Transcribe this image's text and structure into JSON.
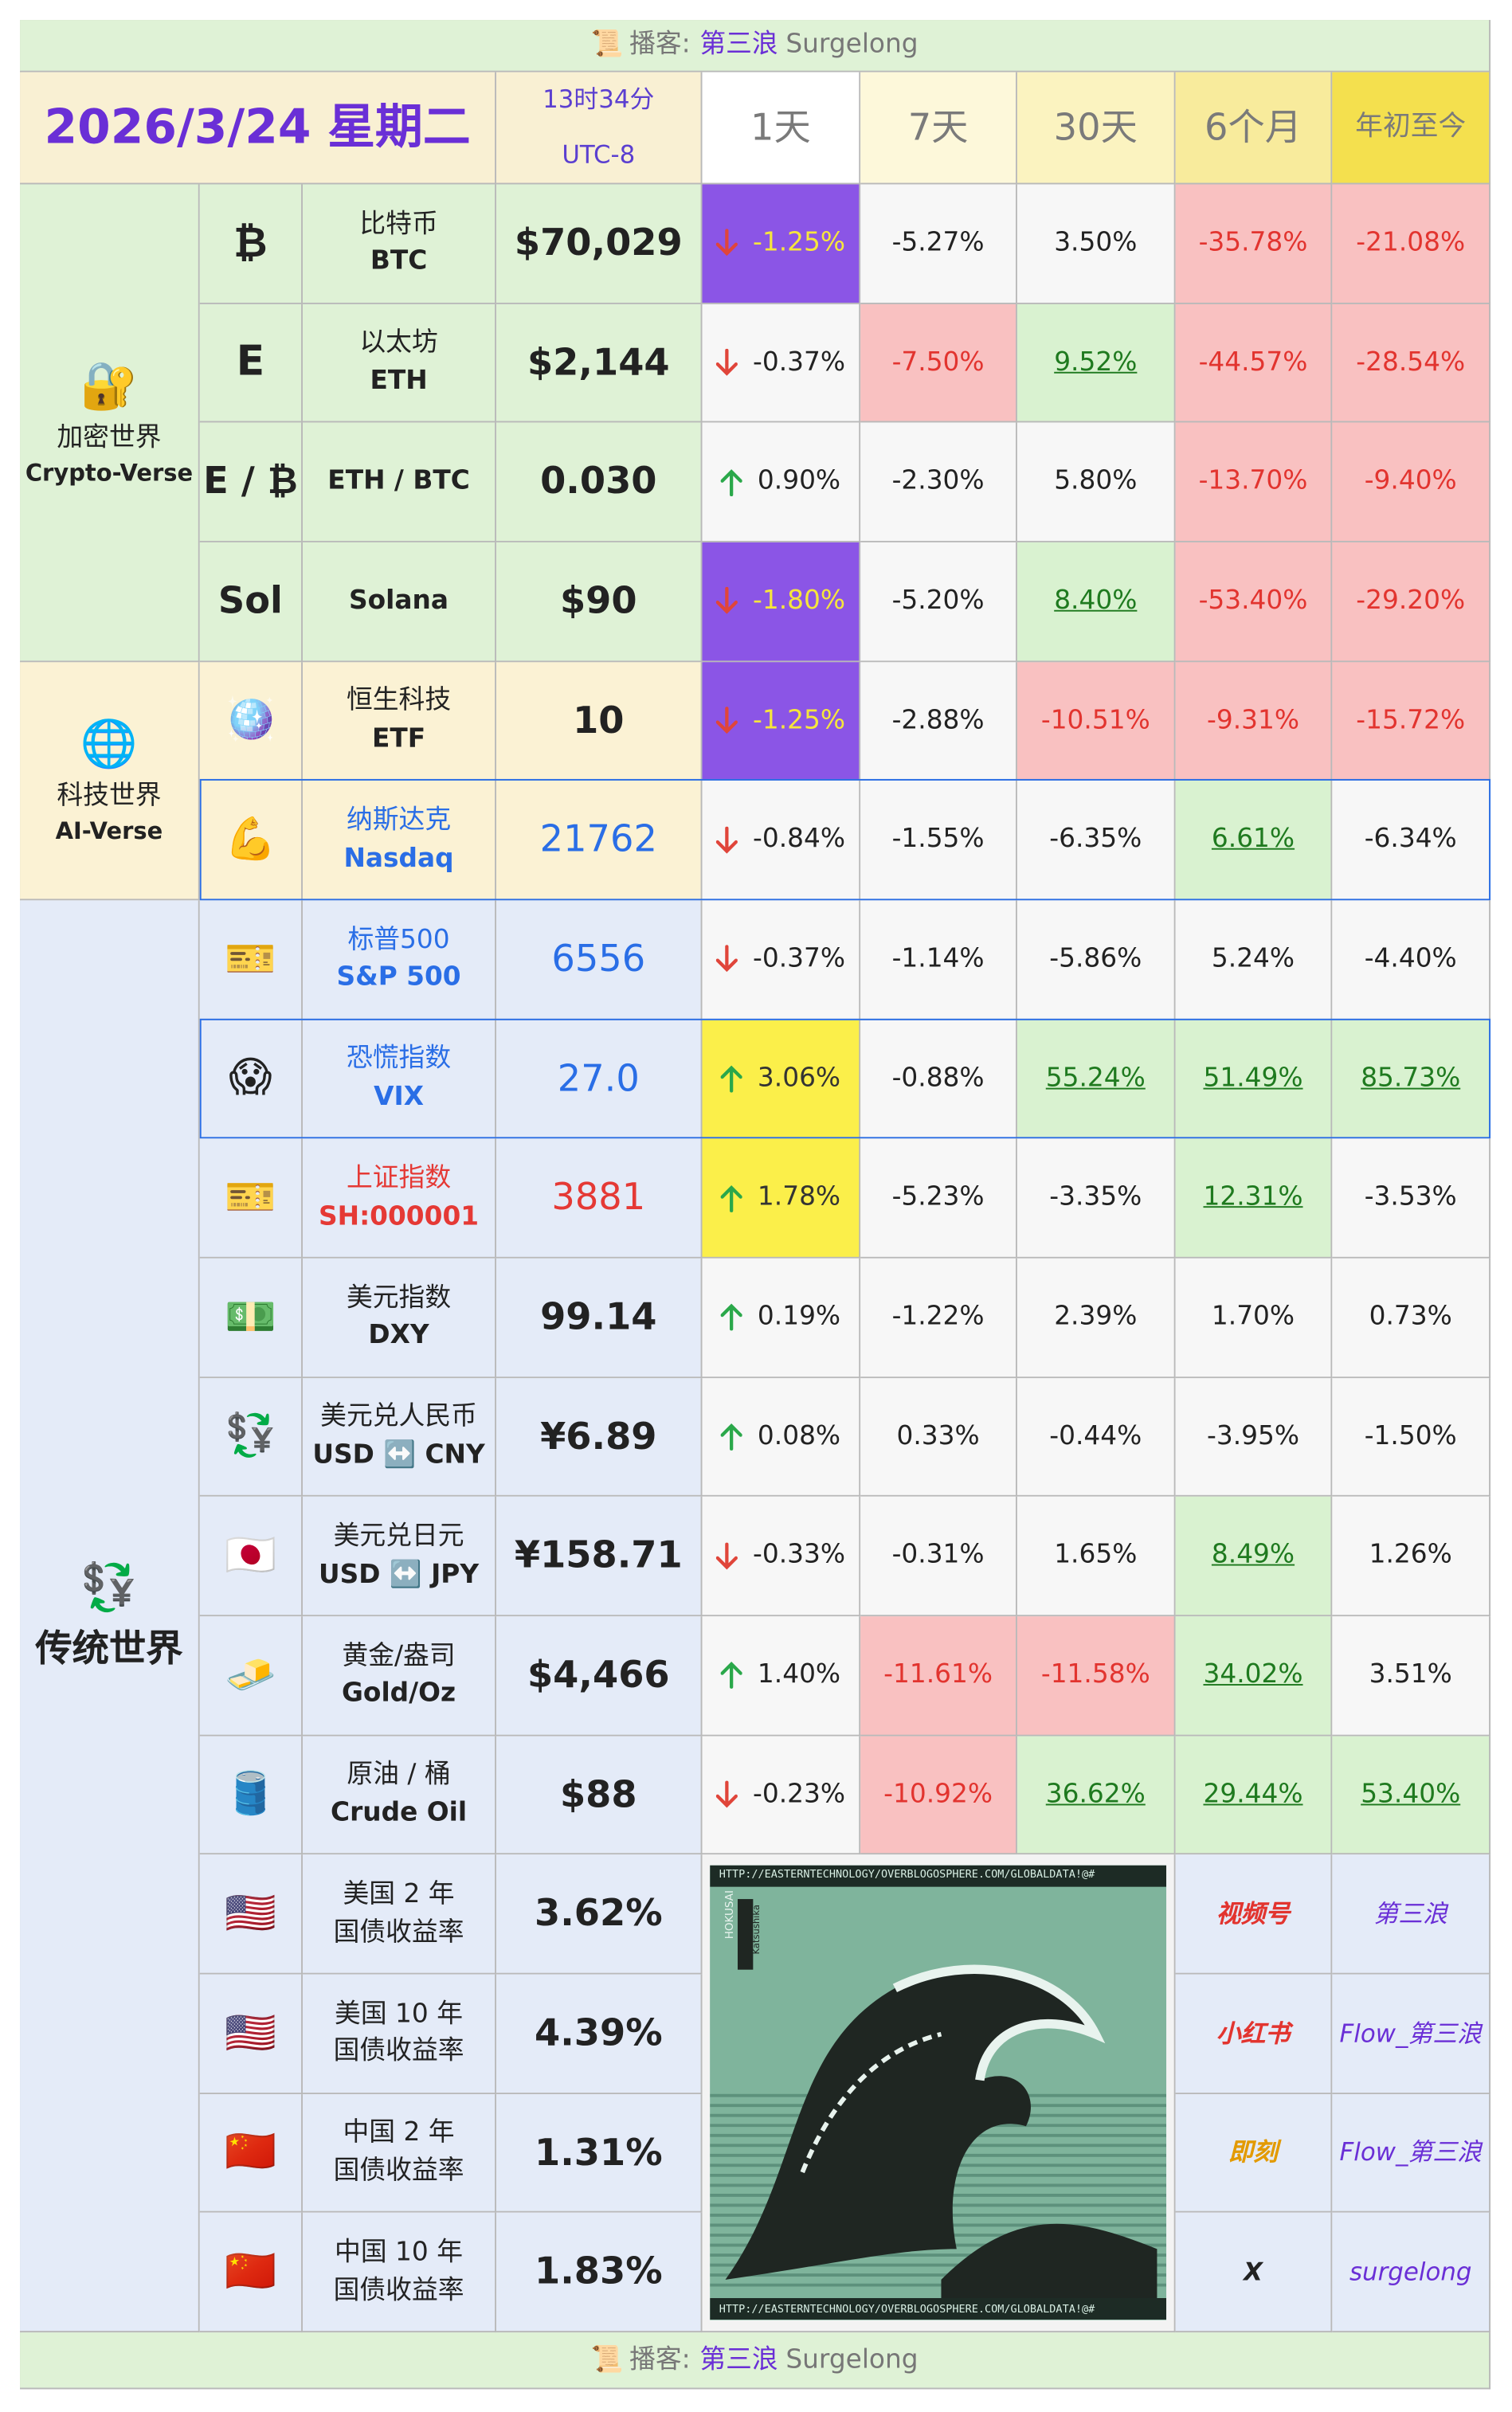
{
  "header": {
    "icon": "📜",
    "label": "播客:",
    "name_cn": "第三浪",
    "name_en": "Surgelong"
  },
  "title": {
    "date": "2026/3/24 星期二",
    "time": "13时34分",
    "timezone": "UTC-8"
  },
  "columns": [
    "1天",
    "7天",
    "30天",
    "6个月",
    "年初至今"
  ],
  "column_colors": [
    "#ffffff",
    "#fdf8da",
    "#fbf3c0",
    "#f8eb9c",
    "#f4e04e"
  ],
  "default_cell_color": "#f7f7f7",
  "highlight_styles": {
    "#8b55e6": {
      "color": "#f6e63c",
      "underline": false
    },
    "#fbef4a": {
      "color": "#333333",
      "underline": false
    },
    "#f9c1c1": {
      "color": "#e2342f",
      "underline": false
    },
    "#d9f2d0": {
      "color": "#1f7a1f",
      "underline": true
    }
  },
  "groups": [
    {
      "icon": "🔐",
      "name_cn": "加密世界",
      "name_en": "Crypto-Verse",
      "color": "#dff2d6",
      "rows": [
        {
          "icon": "₿",
          "name_cn": "比特币",
          "name_en": "BTC",
          "price": "$70,029",
          "changes": [
            "-1.25%",
            "-5.27%",
            "3.50%",
            "-35.78%",
            "-21.08%"
          ],
          "colors": [
            "#8b55e6",
            null,
            null,
            "#f9c1c1",
            "#f9c1c1"
          ]
        },
        {
          "icon": "E",
          "name_cn": "以太坊",
          "name_en": "ETH",
          "price": "$2,144",
          "changes": [
            "-0.37%",
            "-7.50%",
            "9.52%",
            "-44.57%",
            "-28.54%"
          ],
          "colors": [
            null,
            "#f9c1c1",
            "#d9f2d0",
            "#f9c1c1",
            "#f9c1c1"
          ]
        },
        {
          "icon": "E / ₿",
          "name_en": "ETH / BTC",
          "price": "0.030",
          "changes": [
            "0.90%",
            "-2.30%",
            "5.80%",
            "-13.70%",
            "-9.40%"
          ],
          "colors": [
            null,
            null,
            null,
            "#f9c1c1",
            "#f9c1c1"
          ]
        },
        {
          "icon": "Sol",
          "name_en": "Solana",
          "price": "$90",
          "changes": [
            "-1.80%",
            "-5.20%",
            "8.40%",
            "-53.40%",
            "-29.20%"
          ],
          "colors": [
            "#8b55e6",
            null,
            "#d9f2d0",
            "#f9c1c1",
            "#f9c1c1"
          ]
        }
      ]
    },
    {
      "icon": "🌐",
      "name_cn": "科技世界",
      "name_en": "AI-Verse",
      "color": "#fbf2d4",
      "rows": [
        {
          "icon": "🪩",
          "name_cn": "恒生科技",
          "name_en": "ETF",
          "price": "10",
          "changes": [
            "-1.25%",
            "-2.88%",
            "-10.51%",
            "-9.31%",
            "-15.72%"
          ],
          "colors": [
            "#8b55e6",
            null,
            "#f9c1c1",
            "#f9c1c1",
            "#f9c1c1"
          ]
        },
        {
          "icon": "💪",
          "name_cn": "纳斯达克",
          "name_en": "Nasdaq",
          "price": "21762",
          "text_color": "#2a6ee6",
          "border_color": "#2a6ee6",
          "changes": [
            "-0.84%",
            "-1.55%",
            "-6.35%",
            "6.61%",
            "-6.34%"
          ],
          "colors": [
            null,
            null,
            null,
            "#d9f2d0",
            null
          ]
        }
      ]
    },
    {
      "icon": "💱",
      "name_cn": "传统世界",
      "color": "#e4ebf8",
      "rows": [
        {
          "icon": "🎫",
          "name_cn": "标普500",
          "name_en": "S&P 500",
          "price": "6556",
          "text_color": "#2a6ee6",
          "changes": [
            "-0.37%",
            "-1.14%",
            "-5.86%",
            "5.24%",
            "-4.40%"
          ],
          "colors": [
            null,
            null,
            null,
            null,
            null
          ]
        },
        {
          "icon": "😱",
          "name_cn": "恐慌指数",
          "name_en": "VIX",
          "price": "27.0",
          "text_color": "#2a6ee6",
          "border_color": "#2a6ee6",
          "changes": [
            "3.06%",
            "-0.88%",
            "55.24%",
            "51.49%",
            "85.73%"
          ],
          "colors": [
            "#fbef4a",
            null,
            "#d9f2d0",
            "#d9f2d0",
            "#d9f2d0"
          ]
        },
        {
          "icon": "🎫",
          "name_cn": "上证指数",
          "name_en": "SH:000001",
          "price": "3881",
          "text_color": "#e53935",
          "changes": [
            "1.78%",
            "-5.23%",
            "-3.35%",
            "12.31%",
            "-3.53%"
          ],
          "colors": [
            "#fbef4a",
            null,
            null,
            "#d9f2d0",
            null
          ]
        },
        {
          "icon": "💵",
          "name_cn": "美元指数",
          "name_en": "DXY",
          "price": "99.14",
          "changes": [
            "0.19%",
            "-1.22%",
            "2.39%",
            "1.70%",
            "0.73%"
          ],
          "colors": [
            null,
            null,
            null,
            null,
            null
          ]
        },
        {
          "icon": "💱",
          "name_cn": "美元兑人民币",
          "name_en": "USD ↔️ CNY",
          "price": "¥6.89",
          "changes": [
            "0.08%",
            "0.33%",
            "-0.44%",
            "-3.95%",
            "-1.50%"
          ],
          "colors": [
            null,
            null,
            null,
            null,
            null
          ]
        },
        {
          "icon": "🇯🇵",
          "name_cn": "美元兑日元",
          "name_en": "USD ↔️ JPY",
          "price": "¥158.71",
          "changes": [
            "-0.33%",
            "-0.31%",
            "1.65%",
            "8.49%",
            "1.26%"
          ],
          "colors": [
            null,
            null,
            null,
            "#d9f2d0",
            null
          ]
        },
        {
          "icon": "🧈",
          "name_cn": "黄金/盎司",
          "name_en": "Gold/Oz",
          "price": "$4,466",
          "changes": [
            "1.40%",
            "-11.61%",
            "-11.58%",
            "34.02%",
            "3.51%"
          ],
          "colors": [
            null,
            "#f9c1c1",
            "#f9c1c1",
            "#d9f2d0",
            null
          ]
        },
        {
          "icon": "🛢️",
          "name_cn": "原油 / 桶",
          "name_en": "Crude Oil",
          "price": "$88",
          "changes": [
            "-0.23%",
            "-10.92%",
            "36.62%",
            "29.44%",
            "53.40%"
          ],
          "colors": [
            null,
            "#f9c1c1",
            "#d9f2d0",
            "#d9f2d0",
            "#d9f2d0"
          ]
        },
        {
          "icon": "🇺🇸",
          "name_cn": "美国 2 年",
          "name_en": "国债收益率",
          "price": "3.62%"
        },
        {
          "icon": "🇺🇸",
          "name_cn": "美国 10 年",
          "name_en": "国债收益率",
          "price": "4.39%"
        },
        {
          "icon": "🇨🇳",
          "name_cn": "中国 2 年",
          "name_en": "国债收益率",
          "price": "1.31%"
        },
        {
          "icon": "🇨🇳",
          "name_cn": "中国 10 年",
          "name_en": "国债收益率",
          "price": "1.83%"
        }
      ]
    }
  ],
  "image": {
    "caption": "HTTP://EASTERNTECHNOLOGY/OVERBLOGOSPHERE.COM/GLOBALDATA!@#",
    "label": "HOKUSAI",
    "sublabel": "Katsushika"
  },
  "social": [
    {
      "platform": "视频号",
      "handle": "第三浪",
      "color": "#e2342f"
    },
    {
      "platform": "小红书",
      "handle": "Flow_第三浪",
      "color": "#e2342f"
    },
    {
      "platform": "即刻",
      "handle": "Flow_第三浪",
      "color": "#e39a00"
    },
    {
      "platform": "X",
      "handle": "surgelong",
      "color": "#222222"
    }
  ]
}
